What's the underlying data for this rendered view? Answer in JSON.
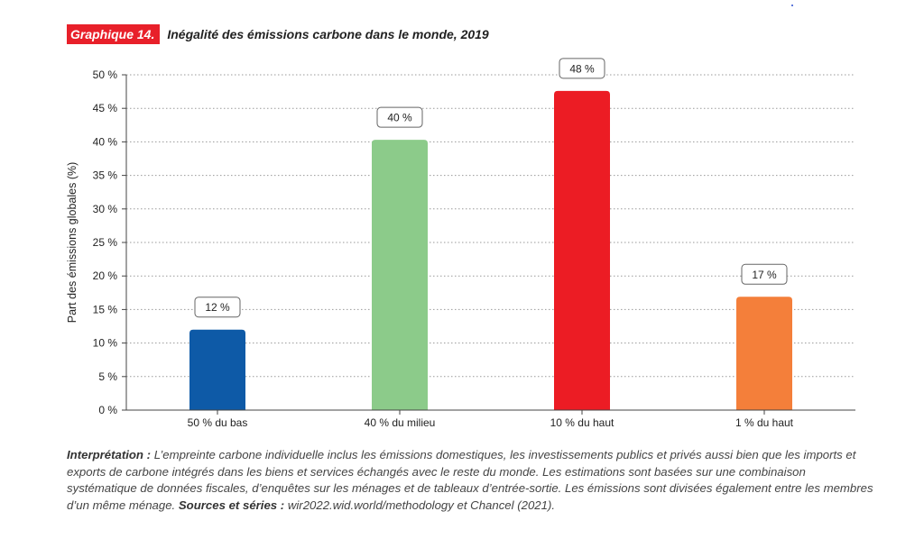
{
  "header": {
    "badge": "Graphique 14.",
    "title": "Inégalité des émissions carbone dans le monde, 2019"
  },
  "chart_data": {
    "type": "bar",
    "categories": [
      "50 % du bas",
      "40 % du milieu",
      "10 % du haut",
      "1 % du haut"
    ],
    "values": [
      12,
      40.3,
      47.6,
      16.9
    ],
    "value_labels": [
      "12 %",
      "40 %",
      "48 %",
      "17 %"
    ],
    "colors": [
      "#0e5aa7",
      "#8ccb8a",
      "#ec1c24",
      "#f47f3a"
    ],
    "ylabel": "Part des émissions globales (%)",
    "ylim": [
      0,
      50
    ],
    "yticks": [
      0,
      5,
      10,
      15,
      20,
      25,
      30,
      35,
      40,
      45,
      50
    ],
    "ytick_labels": [
      "0 %",
      "5 %",
      "10 %",
      "15 %",
      "20 %",
      "25 %",
      "30 %",
      "35 %",
      "40 %",
      "45 %",
      "50 %"
    ],
    "grid": true
  },
  "note": {
    "interp_label": "Interprétation :",
    "interp_text": " L’empreinte carbone individuelle inclus les émissions domestiques, les investissements publics et privés aussi bien que les imports et exports de carbone intégrés dans les biens et services échangés avec le reste du monde. Les estimations sont basées sur une combinaison systématique de données fiscales, d’enquêtes sur les ménages et de tableaux d’entrée-sortie. Les émissions sont divisées également entre les membres d’un même ménage. ",
    "sources_label": "Sources et séries :",
    "sources_text": " wir2022.wid.world/methodology et Chancel (2021)."
  }
}
